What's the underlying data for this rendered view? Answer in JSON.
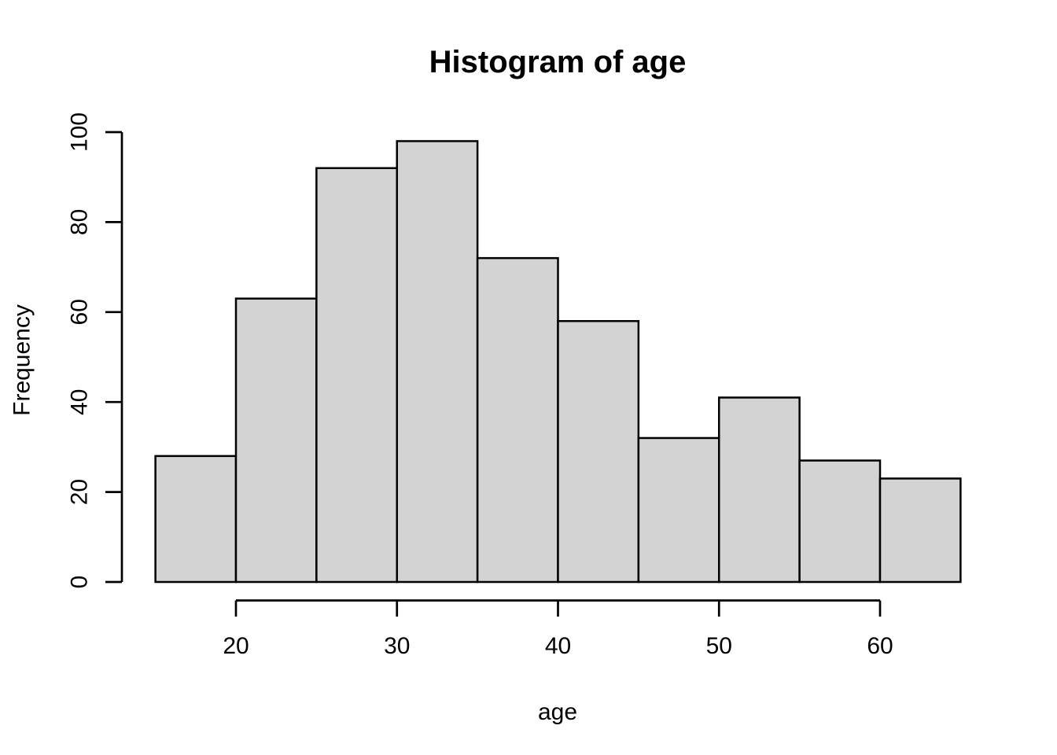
{
  "chart": {
    "title": "Histogram of age",
    "x_axis_label": "age",
    "y_axis_label": "Frequency"
  },
  "chart_data": {
    "type": "bar",
    "subtype": "histogram",
    "title": "Histogram of age",
    "xlabel": "age",
    "ylabel": "Frequency",
    "bin_edges": [
      15,
      20,
      25,
      30,
      35,
      40,
      45,
      50,
      55,
      60,
      65
    ],
    "counts": [
      28,
      63,
      92,
      98,
      72,
      58,
      32,
      41,
      27,
      23
    ],
    "x_ticks": [
      20,
      30,
      40,
      50,
      60
    ],
    "y_ticks": [
      0,
      20,
      40,
      60,
      80,
      100
    ],
    "xlim": [
      15,
      65
    ],
    "ylim": [
      0,
      100
    ],
    "grid": false,
    "legend": null,
    "colors": {
      "bar_fill": "#D3D3D3",
      "bar_stroke": "#000000",
      "axis": "#000000",
      "text": "#000000",
      "background": "#FFFFFF"
    }
  }
}
